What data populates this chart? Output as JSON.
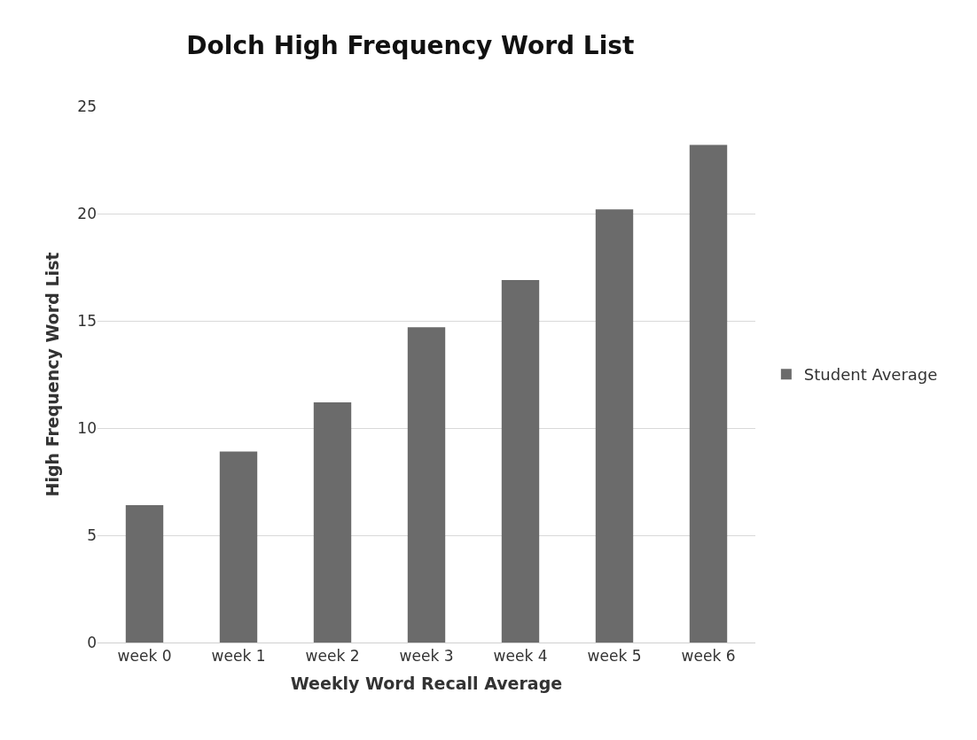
{
  "chart_data": {
    "type": "bar",
    "title": "Dolch High Frequency Word List",
    "xlabel": "Weekly Word Recall Average",
    "ylabel": "High Frequency Word List",
    "categories": [
      "week 0",
      "week 1",
      "week 2",
      "week 3",
      "week 4",
      "week 5",
      "week 6"
    ],
    "series": [
      {
        "name": "Student Average",
        "color": "#6b6b6b",
        "values": [
          6.4,
          8.9,
          11.2,
          14.7,
          16.9,
          20.2,
          23.2
        ]
      }
    ],
    "ylim": [
      0,
      25
    ],
    "yticks": [
      0,
      5,
      10,
      15,
      20,
      25
    ],
    "grid": "y",
    "legend": "right"
  }
}
